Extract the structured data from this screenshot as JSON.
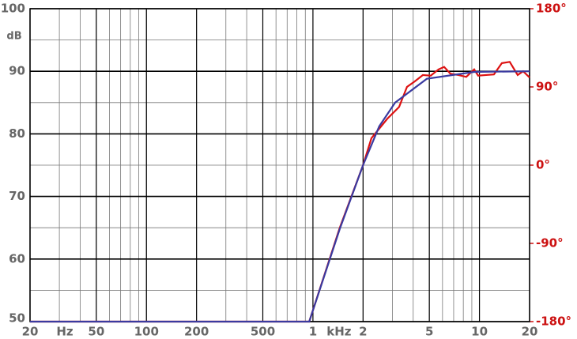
{
  "chart_data": {
    "type": "line",
    "ylabel": "dB",
    "x_unit_labels": [
      "Hz",
      "kHz"
    ],
    "xscale": "log",
    "xlim": [
      20,
      20000
    ],
    "xticks": [
      20,
      50,
      100,
      200,
      500,
      {
        "value": 1000,
        "label": "1"
      },
      {
        "value": 2000,
        "label": "2"
      },
      {
        "value": 5000,
        "label": "5"
      },
      {
        "value": 10000,
        "label": "10"
      },
      {
        "value": 20000,
        "label": "20"
      }
    ],
    "ylim": [
      50,
      100
    ],
    "yticks": [
      50,
      60,
      70,
      80,
      90,
      100
    ],
    "y2lim": [
      -180,
      180
    ],
    "y2ticks": [
      {
        "value": -180,
        "label": "-180°"
      },
      {
        "value": -90,
        "label": "-90°"
      },
      {
        "value": 0,
        "label": "0°"
      },
      {
        "value": 90,
        "label": "90°"
      },
      {
        "value": 180,
        "label": "180°"
      }
    ],
    "grid": true,
    "minor_grid": true,
    "series": [
      {
        "color": "#dd1111",
        "x": [
          20,
          950,
          1449,
          2000,
          2245,
          2794,
          3291,
          3671,
          4096,
          4570,
          5097,
          5686,
          6137,
          6697,
          7474,
          8333,
          9297,
          9820,
          10955,
          12220,
          13630,
          15200,
          16960,
          18300,
          20000
        ],
        "values": [
          50,
          50,
          65,
          75,
          79.3,
          82.4,
          84.3,
          87.5,
          88.4,
          89.4,
          89.3,
          90.3,
          90.7,
          89.6,
          89.4,
          89.1,
          90.3,
          89.3,
          89.4,
          89.5,
          91.3,
          91.5,
          89.4,
          90.0,
          89.0
        ]
      },
      {
        "color": "#3a3aa0",
        "x": [
          20,
          950,
          1449,
          2000,
          2500,
          3118,
          4830,
          9297,
          20000
        ],
        "values": [
          50,
          50,
          64.8,
          75,
          81.2,
          85,
          88.8,
          89.9,
          90
        ]
      }
    ]
  }
}
